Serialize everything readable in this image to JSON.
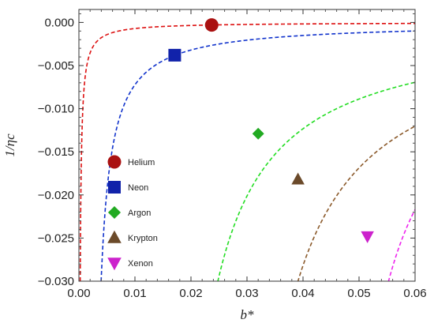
{
  "chart_data": {
    "type": "line",
    "xlabel": "b*",
    "ylabel": "1/ηc",
    "xlim": [
      0.0,
      0.06
    ],
    "ylim": [
      -0.03,
      0.0015
    ],
    "x_ticks": [
      0.0,
      0.01,
      0.02,
      0.03,
      0.04,
      0.05,
      0.06
    ],
    "x_tick_labels": [
      "0.00",
      "0.01",
      "0.02",
      "0.03",
      "0.04",
      "0.05",
      "0.06"
    ],
    "y_ticks": [
      0.0,
      -0.005,
      -0.01,
      -0.015,
      -0.02,
      -0.025,
      -0.03
    ],
    "y_tick_labels": [
      "0.000",
      "−0.005",
      "−0.010",
      "−0.015",
      "−0.020",
      "−0.025",
      "−0.030"
    ],
    "grid": false,
    "legend_placement": "left-lower",
    "series": [
      {
        "name": "Helium",
        "color": "#dd1111",
        "marker_color": "#aa1111",
        "marker": "circle",
        "x0": -5e-06,
        "scale": 7.08e-06,
        "point": {
          "x": 0.0237,
          "y": -0.0003
        }
      },
      {
        "name": "Neon",
        "color": "#1133cc",
        "marker_color": "#1122aa",
        "marker": "square",
        "x0": 0.00205,
        "scale": 5.75e-05,
        "point": {
          "x": 0.0171,
          "y": -0.0038
        }
      },
      {
        "name": "Argon",
        "color": "#22dd22",
        "marker_color": "#22aa22",
        "marker": "diamond",
        "x0": 0.0142,
        "scale": 0.000318,
        "point": {
          "x": 0.032,
          "y": -0.0129
        }
      },
      {
        "name": "Krypton",
        "color": "#8b5a2b",
        "marker_color": "#6b4a2a",
        "marker": "triangle-up",
        "x0": 0.0251,
        "scale": 0.00042,
        "point": {
          "x": 0.0391,
          "y": -0.0182
        }
      },
      {
        "name": "Xenon",
        "color": "#ee22ee",
        "marker_color": "#cc22cc",
        "marker": "triangle-down",
        "x0": 0.0429,
        "scale": 0.000371,
        "point": {
          "x": 0.0515,
          "y": -0.0248
        }
      }
    ]
  }
}
